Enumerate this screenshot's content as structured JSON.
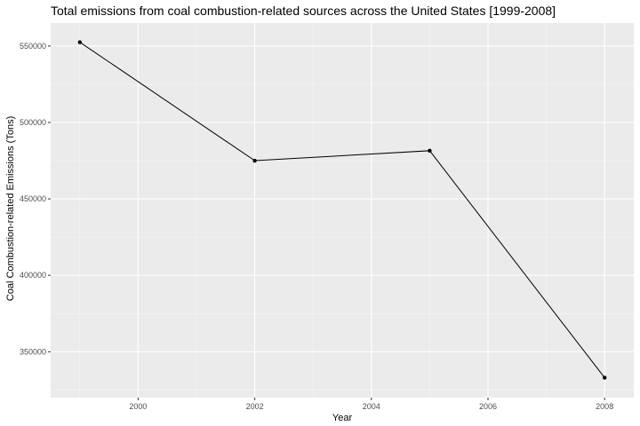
{
  "chart_data": {
    "type": "line",
    "title": "Total emissions from coal combustion-related sources across the United States [1999-2008]",
    "xlabel": "Year",
    "ylabel": "Coal Combustion-related Emissions (Tons)",
    "x": [
      1999,
      2002,
      2005,
      2008
    ],
    "series": [
      {
        "values": [
          552500,
          475000,
          481500,
          333000
        ]
      }
    ],
    "xlim": [
      1998.5,
      2008.5
    ],
    "ylim": [
      320000,
      565000
    ],
    "x_ticks": [
      2000,
      2002,
      2004,
      2006,
      2008
    ],
    "x_tick_labels": [
      "2000",
      "2002",
      "2004",
      "2006",
      "2008"
    ],
    "y_ticks": [
      350000,
      400000,
      450000,
      500000,
      550000
    ],
    "y_tick_labels": [
      "350000",
      "400000",
      "450000",
      "500000",
      "550000"
    ],
    "grid": true,
    "legend": "none",
    "colors": {
      "panel_background": "#ebebeb",
      "grid_major": "#ffffff",
      "grid_minor": "#f5f5f5",
      "line": "#000000",
      "tick_label": "#4d4d4d"
    }
  }
}
